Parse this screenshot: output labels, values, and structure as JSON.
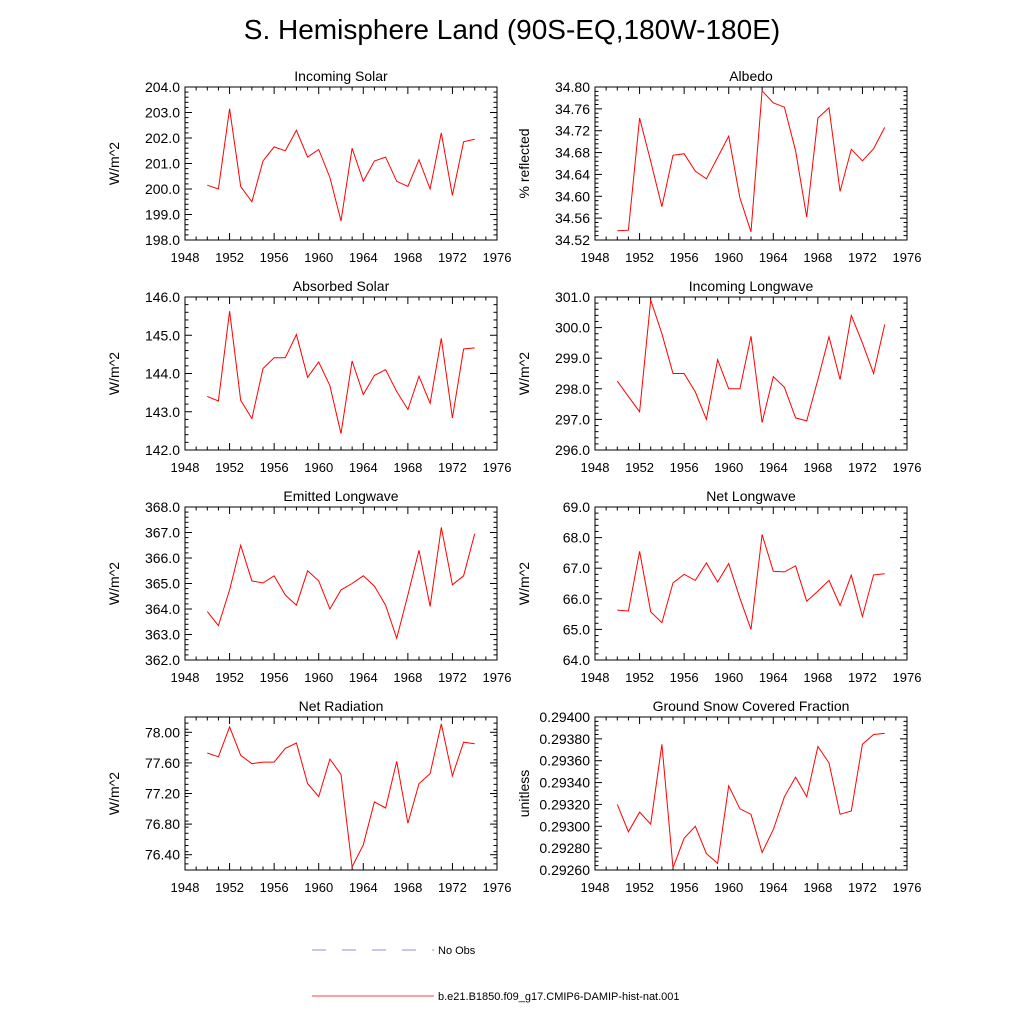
{
  "title": "S. Hemisphere Land (90S-EQ,180W-180E)",
  "legend": {
    "entries": [
      {
        "label": "No Obs",
        "style": "dashed",
        "color": "#6a6ad8"
      },
      {
        "label": "b.e21.B1850.f09_g17.CMIP6-DAMIP-hist-nat.001",
        "style": "solid",
        "color": "#ff0000"
      }
    ]
  },
  "chart_data": [
    {
      "type": "line",
      "title": "Incoming Solar",
      "ylabel": "W/m^2",
      "xlim": [
        1948,
        1976
      ],
      "xticks": [
        1948,
        1952,
        1956,
        1960,
        1964,
        1968,
        1972,
        1976
      ],
      "ylim": [
        198.0,
        204.0
      ],
      "yticks": [
        "198.0",
        "199.0",
        "200.0",
        "201.0",
        "202.0",
        "203.0",
        "204.0"
      ],
      "x": [
        1950,
        1951,
        1952,
        1953,
        1954,
        1955,
        1956,
        1957,
        1958,
        1959,
        1960,
        1961,
        1962,
        1963,
        1964,
        1965,
        1966,
        1967,
        1968,
        1969,
        1970,
        1971,
        1972,
        1973,
        1974
      ],
      "series": [
        {
          "name": "b.e21.B1850.f09_g17.CMIP6-DAMIP-hist-nat.001",
          "color": "#ff0000",
          "values": [
            200.15,
            200.0,
            203.15,
            200.1,
            199.5,
            201.1,
            201.65,
            201.5,
            202.3,
            201.25,
            201.55,
            200.45,
            198.75,
            201.6,
            200.3,
            201.1,
            201.25,
            200.3,
            200.1,
            201.15,
            200.0,
            202.2,
            199.75,
            201.85,
            201.95
          ]
        }
      ]
    },
    {
      "type": "line",
      "title": "Albedo",
      "ylabel": "% reflected",
      "xlim": [
        1948,
        1976
      ],
      "xticks": [
        1948,
        1952,
        1956,
        1960,
        1964,
        1968,
        1972,
        1976
      ],
      "ylim": [
        34.52,
        34.8
      ],
      "yticks": [
        "34.52",
        "34.56",
        "34.60",
        "34.64",
        "34.68",
        "34.72",
        "34.76",
        "34.80"
      ],
      "x": [
        1950,
        1951,
        1952,
        1953,
        1954,
        1955,
        1956,
        1957,
        1958,
        1959,
        1960,
        1961,
        1962,
        1963,
        1964,
        1965,
        1966,
        1967,
        1968,
        1969,
        1970,
        1971,
        1972,
        1973,
        1974
      ],
      "series": [
        {
          "name": "b.e21.B1850.f09_g17.CMIP6-DAMIP-hist-nat.001",
          "color": "#ff0000",
          "values": [
            34.537,
            34.538,
            34.743,
            34.664,
            34.581,
            34.675,
            34.678,
            34.646,
            34.632,
            34.671,
            34.71,
            34.597,
            34.535,
            34.793,
            34.771,
            34.763,
            34.683,
            34.562,
            34.743,
            34.762,
            34.609,
            34.686,
            34.665,
            34.687,
            34.726
          ]
        }
      ]
    },
    {
      "type": "line",
      "title": "Absorbed Solar",
      "ylabel": "W/m^2",
      "xlim": [
        1948,
        1976
      ],
      "xticks": [
        1948,
        1952,
        1956,
        1960,
        1964,
        1968,
        1972,
        1976
      ],
      "ylim": [
        142.0,
        146.0
      ],
      "yticks": [
        "142.0",
        "143.0",
        "144.0",
        "145.0",
        "146.0"
      ],
      "x": [
        1950,
        1951,
        1952,
        1953,
        1954,
        1955,
        1956,
        1957,
        1958,
        1959,
        1960,
        1961,
        1962,
        1963,
        1964,
        1965,
        1966,
        1967,
        1968,
        1969,
        1970,
        1971,
        1972,
        1973,
        1974
      ],
      "series": [
        {
          "name": "b.e21.B1850.f09_g17.CMIP6-DAMIP-hist-nat.001",
          "color": "#ff0000",
          "values": [
            143.4,
            143.28,
            145.63,
            143.3,
            142.82,
            144.13,
            144.41,
            144.41,
            145.02,
            143.9,
            144.3,
            143.68,
            142.43,
            144.33,
            143.45,
            143.95,
            144.1,
            143.53,
            143.06,
            143.93,
            143.22,
            144.92,
            142.84,
            144.64,
            144.67
          ]
        }
      ]
    },
    {
      "type": "line",
      "title": "Incoming Longwave",
      "ylabel": "W/m^2",
      "xlim": [
        1948,
        1976
      ],
      "xticks": [
        1948,
        1952,
        1956,
        1960,
        1964,
        1968,
        1972,
        1976
      ],
      "ylim": [
        296.0,
        301.0
      ],
      "yticks": [
        "296.0",
        "297.0",
        "298.0",
        "299.0",
        "300.0",
        "301.0"
      ],
      "x": [
        1950,
        1951,
        1952,
        1953,
        1954,
        1955,
        1956,
        1957,
        1958,
        1959,
        1960,
        1961,
        1962,
        1963,
        1964,
        1965,
        1966,
        1967,
        1968,
        1969,
        1970,
        1971,
        1972,
        1973,
        1974
      ],
      "series": [
        {
          "name": "b.e21.B1850.f09_g17.CMIP6-DAMIP-hist-nat.001",
          "color": "#ff0000",
          "values": [
            298.25,
            297.75,
            297.25,
            300.9,
            299.8,
            298.5,
            298.5,
            297.9,
            297.0,
            298.95,
            298.0,
            298.0,
            299.72,
            296.9,
            298.4,
            298.05,
            297.05,
            296.95,
            298.3,
            299.7,
            298.3,
            300.4,
            299.5,
            298.5,
            300.1
          ]
        }
      ]
    },
    {
      "type": "line",
      "title": "Emitted Longwave",
      "ylabel": "W/m^2",
      "xlim": [
        1948,
        1976
      ],
      "xticks": [
        1948,
        1952,
        1956,
        1960,
        1964,
        1968,
        1972,
        1976
      ],
      "ylim": [
        362.0,
        368.0
      ],
      "yticks": [
        "362.0",
        "363.0",
        "364.0",
        "365.0",
        "366.0",
        "367.0",
        "368.0"
      ],
      "x": [
        1950,
        1951,
        1952,
        1953,
        1954,
        1955,
        1956,
        1957,
        1958,
        1959,
        1960,
        1961,
        1962,
        1963,
        1964,
        1965,
        1966,
        1967,
        1968,
        1969,
        1970,
        1971,
        1972,
        1973,
        1974
      ],
      "series": [
        {
          "name": "b.e21.B1850.f09_g17.CMIP6-DAMIP-hist-nat.001",
          "color": "#ff0000",
          "values": [
            363.9,
            363.35,
            364.75,
            366.5,
            365.1,
            365.02,
            365.3,
            364.55,
            364.15,
            365.5,
            365.1,
            364.0,
            364.75,
            365.0,
            365.3,
            364.9,
            364.15,
            362.85,
            364.55,
            366.3,
            364.1,
            367.2,
            364.95,
            365.3,
            366.95
          ]
        }
      ]
    },
    {
      "type": "line",
      "title": "Net Longwave",
      "ylabel": "W/m^2",
      "xlim": [
        1948,
        1976
      ],
      "xticks": [
        1948,
        1952,
        1956,
        1960,
        1964,
        1968,
        1972,
        1976
      ],
      "ylim": [
        64.0,
        69.0
      ],
      "yticks": [
        "64.0",
        "65.0",
        "66.0",
        "67.0",
        "68.0",
        "69.0"
      ],
      "x": [
        1950,
        1951,
        1952,
        1953,
        1954,
        1955,
        1956,
        1957,
        1958,
        1959,
        1960,
        1961,
        1962,
        1963,
        1964,
        1965,
        1966,
        1967,
        1968,
        1969,
        1970,
        1971,
        1972,
        1973,
        1974
      ],
      "series": [
        {
          "name": "b.e21.B1850.f09_g17.CMIP6-DAMIP-hist-nat.001",
          "color": "#ff0000",
          "values": [
            65.63,
            65.6,
            67.55,
            65.58,
            65.22,
            66.52,
            66.8,
            66.6,
            67.17,
            66.55,
            67.15,
            66.02,
            65.0,
            68.1,
            66.9,
            66.88,
            67.08,
            65.92,
            66.25,
            66.6,
            65.78,
            66.77,
            65.42,
            66.78,
            66.82
          ]
        }
      ]
    },
    {
      "type": "line",
      "title": "Net Radiation",
      "ylabel": "W/m^2",
      "xlim": [
        1948,
        1976
      ],
      "xticks": [
        1948,
        1952,
        1956,
        1960,
        1964,
        1968,
        1972,
        1976
      ],
      "ylim": [
        76.2,
        78.2
      ],
      "yticks": [
        "76.40",
        "76.80",
        "77.20",
        "77.60",
        "78.00"
      ],
      "x": [
        1950,
        1951,
        1952,
        1953,
        1954,
        1955,
        1956,
        1957,
        1958,
        1959,
        1960,
        1961,
        1962,
        1963,
        1964,
        1965,
        1966,
        1967,
        1968,
        1969,
        1970,
        1971,
        1972,
        1973,
        1974
      ],
      "series": [
        {
          "name": "b.e21.B1850.f09_g17.CMIP6-DAMIP-hist-nat.001",
          "color": "#ff0000",
          "values": [
            77.73,
            77.68,
            78.07,
            77.7,
            77.59,
            77.61,
            77.61,
            77.79,
            77.86,
            77.33,
            77.16,
            77.65,
            77.45,
            76.24,
            76.53,
            77.09,
            77.01,
            77.62,
            76.81,
            77.33,
            77.46,
            78.11,
            77.43,
            77.87,
            77.85
          ]
        }
      ]
    },
    {
      "type": "line",
      "title": "Ground Snow Covered Fraction",
      "ylabel": "unitless",
      "xlim": [
        1948,
        1976
      ],
      "xticks": [
        1948,
        1952,
        1956,
        1960,
        1964,
        1968,
        1972,
        1976
      ],
      "ylim": [
        0.2926,
        0.294
      ],
      "yticks": [
        "0.29260",
        "0.29280",
        "0.29300",
        "0.29320",
        "0.29340",
        "0.29360",
        "0.29380",
        "0.29400"
      ],
      "x": [
        1950,
        1951,
        1952,
        1953,
        1954,
        1955,
        1956,
        1957,
        1958,
        1959,
        1960,
        1961,
        1962,
        1963,
        1964,
        1965,
        1966,
        1967,
        1968,
        1969,
        1970,
        1971,
        1972,
        1973,
        1974
      ],
      "series": [
        {
          "name": "b.e21.B1850.f09_g17.CMIP6-DAMIP-hist-nat.001",
          "color": "#ff0000",
          "values": [
            0.2932,
            0.29295,
            0.29313,
            0.29302,
            0.29375,
            0.29262,
            0.29289,
            0.293,
            0.29275,
            0.29266,
            0.29337,
            0.29316,
            0.29311,
            0.29276,
            0.29297,
            0.29327,
            0.29345,
            0.29327,
            0.29373,
            0.29358,
            0.29311,
            0.29314,
            0.29375,
            0.29384,
            0.29385
          ]
        }
      ]
    }
  ]
}
